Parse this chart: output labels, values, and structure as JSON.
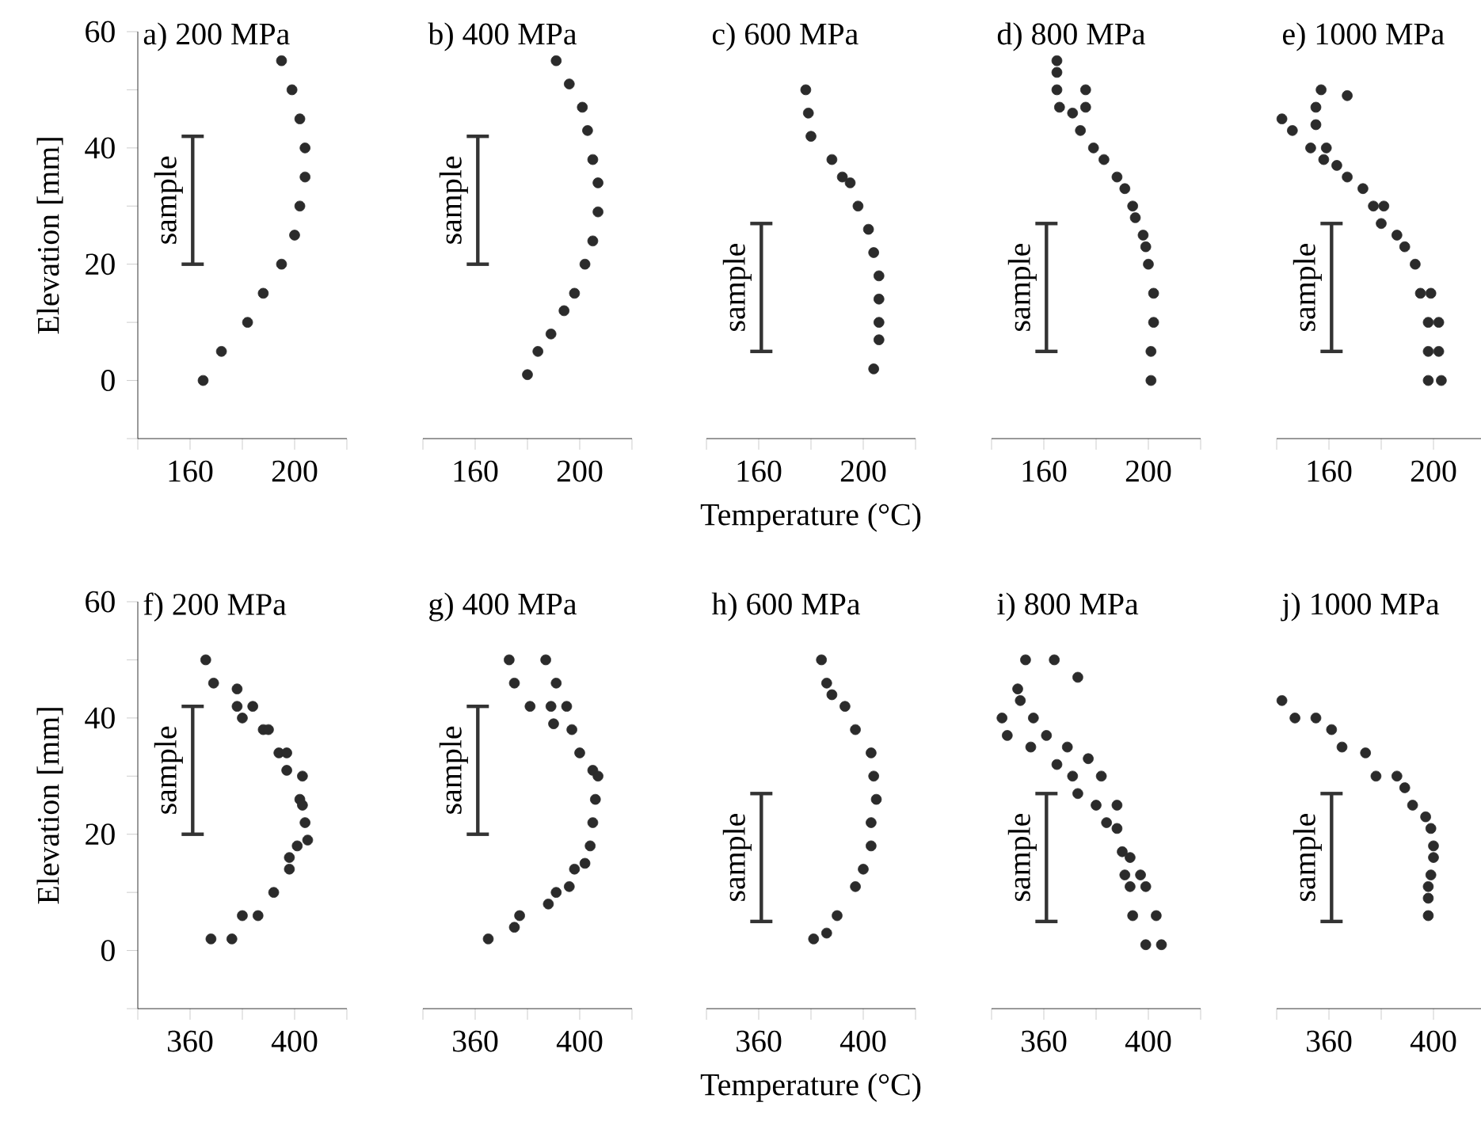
{
  "chart_data": [
    {
      "type": "scatter",
      "title": "a) 200 MPa",
      "ylabel": "Elevation [mm]",
      "xlim": [
        140,
        220
      ],
      "xticks": [
        {
          "value": 140,
          "label": null
        },
        160,
        {
          "value": 180,
          "label": null
        },
        200,
        {
          "value": 220,
          "label": null
        }
      ],
      "ylim": [
        -10,
        60
      ],
      "yticks": [
        {
          "value": -10,
          "label": null
        },
        0,
        {
          "value": 10,
          "label": null
        },
        20,
        {
          "value": 30,
          "label": null
        },
        40,
        {
          "value": 50,
          "label": null
        },
        60
      ],
      "annotations": [
        "sample"
      ],
      "series": [
        {
          "color": "#2b2b2b",
          "x": [
            165,
            172,
            182,
            188,
            195,
            200,
            202,
            204,
            204,
            202,
            199,
            195
          ],
          "values": [
            0,
            5,
            10,
            15,
            20,
            25,
            30,
            35,
            40,
            45,
            50,
            55
          ]
        },
        {
          "type": "line",
          "color": "#333333",
          "x": [
            161,
            161
          ],
          "values": [
            20,
            42
          ]
        }
      ]
    },
    {
      "type": "scatter",
      "title": "b) 400 MPa",
      "xlim": [
        140,
        220
      ],
      "xticks": [
        {
          "value": 140,
          "label": null
        },
        160,
        {
          "value": 180,
          "label": null
        },
        200,
        {
          "value": 220,
          "label": null
        }
      ],
      "ylim": [
        -10,
        60
      ],
      "tick_labels": "x",
      "annotations": [
        "sample"
      ],
      "series": [
        {
          "color": "#2b2b2b",
          "x": [
            180,
            184,
            189,
            194,
            198,
            202,
            205,
            207,
            207,
            205,
            203,
            201,
            196,
            191
          ],
          "values": [
            1,
            5,
            8,
            12,
            15,
            20,
            24,
            29,
            34,
            38,
            43,
            47,
            51,
            55
          ]
        },
        {
          "type": "line",
          "color": "#333333",
          "x": [
            161,
            161
          ],
          "values": [
            20,
            42
          ]
        }
      ]
    },
    {
      "type": "scatter",
      "title": "c) 600 MPa",
      "xlabel": "Temperature (°C)",
      "xlim": [
        140,
        220
      ],
      "xticks": [
        {
          "value": 140,
          "label": null
        },
        160,
        {
          "value": 180,
          "label": null
        },
        200,
        {
          "value": 220,
          "label": null
        }
      ],
      "ylim": [
        -10,
        60
      ],
      "tick_labels": "x",
      "annotations": [
        "sample"
      ],
      "series": [
        {
          "color": "#2b2b2b",
          "x": [
            178,
            179,
            180,
            188,
            192,
            195,
            198,
            202,
            204,
            206,
            206,
            206,
            206,
            204
          ],
          "values": [
            50,
            46,
            42,
            38,
            35,
            34,
            30,
            26,
            22,
            18,
            14,
            10,
            7,
            2
          ]
        },
        {
          "type": "line",
          "color": "#333333",
          "x": [
            161,
            161
          ],
          "values": [
            5,
            27
          ]
        }
      ]
    },
    {
      "type": "scatter",
      "title": "d) 800 MPa",
      "xlim": [
        140,
        220
      ],
      "xticks": [
        {
          "value": 140,
          "label": null
        },
        160,
        {
          "value": 180,
          "label": null
        },
        200,
        {
          "value": 220,
          "label": null
        }
      ],
      "ylim": [
        -10,
        60
      ],
      "tick_labels": "x",
      "annotations": [
        "sample"
      ],
      "series": [
        {
          "color": "#2b2b2b",
          "x": [
            165,
            165,
            165,
            176,
            166,
            171,
            176,
            174,
            179,
            183,
            188,
            191,
            194,
            195,
            198,
            199,
            200,
            202,
            202,
            201,
            201
          ],
          "values": [
            55,
            53,
            50,
            50,
            47,
            46,
            47,
            43,
            40,
            38,
            35,
            33,
            30,
            28,
            25,
            23,
            20,
            15,
            10,
            5,
            0
          ]
        },
        {
          "type": "line",
          "color": "#333333",
          "x": [
            161,
            161
          ],
          "values": [
            5,
            27
          ]
        }
      ]
    },
    {
      "type": "scatter",
      "title": "e) 1000 MPa",
      "xlim": [
        140,
        220
      ],
      "xticks": [
        {
          "value": 140,
          "label": null
        },
        160,
        {
          "value": 180,
          "label": null
        },
        200,
        {
          "value": 220,
          "label": null
        }
      ],
      "ylim": [
        -10,
        60
      ],
      "tick_labels": "x",
      "annotations": [
        "sample"
      ],
      "series": [
        {
          "color": "#2b2b2b",
          "x": [
            142,
            157,
            167,
            155,
            146,
            155,
            153,
            159,
            158,
            163,
            167,
            173,
            177,
            181,
            180,
            186,
            189,
            193,
            195,
            199,
            198,
            202,
            198,
            202,
            198,
            203
          ],
          "values": [
            45,
            50,
            49,
            47,
            43,
            44,
            40,
            40,
            38,
            37,
            35,
            33,
            30,
            30,
            27,
            25,
            23,
            20,
            15,
            15,
            10,
            10,
            5,
            5,
            0,
            0
          ]
        },
        {
          "type": "line",
          "color": "#333333",
          "x": [
            161,
            161
          ],
          "values": [
            5,
            27
          ]
        }
      ]
    },
    {
      "type": "scatter",
      "title": "f) 200 MPa",
      "ylabel": "Elevation [mm]",
      "xlim": [
        340,
        420
      ],
      "xticks": [
        {
          "value": 340,
          "label": null
        },
        360,
        {
          "value": 380,
          "label": null
        },
        400,
        {
          "value": 420,
          "label": null
        }
      ],
      "ylim": [
        -10,
        60
      ],
      "yticks": [
        {
          "value": -10,
          "label": null
        },
        0,
        {
          "value": 10,
          "label": null
        },
        20,
        {
          "value": 30,
          "label": null
        },
        40,
        {
          "value": 50,
          "label": null
        },
        60
      ],
      "annotations": [
        "sample"
      ],
      "series": [
        {
          "color": "#2b2b2b",
          "x": [
            366,
            369,
            378,
            378,
            384,
            380,
            388,
            390,
            394,
            397,
            397,
            403,
            402,
            403,
            404,
            405,
            401,
            398,
            398,
            392,
            386,
            380,
            376,
            368
          ],
          "values": [
            50,
            46,
            45,
            42,
            42,
            40,
            38,
            38,
            34,
            34,
            31,
            30,
            26,
            25,
            22,
            19,
            18,
            16,
            14,
            10,
            6,
            6,
            2,
            2
          ]
        },
        {
          "type": "line",
          "color": "#333333",
          "x": [
            361,
            361
          ],
          "values": [
            20,
            42
          ]
        }
      ]
    },
    {
      "type": "scatter",
      "title": "g) 400 MPa",
      "xlim": [
        340,
        420
      ],
      "xticks": [
        {
          "value": 340,
          "label": null
        },
        360,
        {
          "value": 380,
          "label": null
        },
        400,
        {
          "value": 420,
          "label": null
        }
      ],
      "ylim": [
        -10,
        60
      ],
      "tick_labels": "x",
      "annotations": [
        "sample"
      ],
      "series": [
        {
          "color": "#2b2b2b",
          "x": [
            373,
            387,
            375,
            391,
            381,
            389,
            395,
            390,
            397,
            400,
            405,
            407,
            406,
            405,
            404,
            402,
            398,
            396,
            391,
            388,
            377,
            375,
            365
          ],
          "values": [
            50,
            50,
            46,
            46,
            42,
            42,
            42,
            39,
            38,
            34,
            31,
            30,
            26,
            22,
            18,
            15,
            14,
            11,
            10,
            8,
            6,
            4,
            2
          ]
        },
        {
          "type": "line",
          "color": "#333333",
          "x": [
            361,
            361
          ],
          "values": [
            20,
            42
          ]
        }
      ]
    },
    {
      "type": "scatter",
      "title": "h) 600 MPa",
      "xlabel": "Temperature (°C)",
      "xlim": [
        340,
        420
      ],
      "xticks": [
        {
          "value": 340,
          "label": null
        },
        360,
        {
          "value": 380,
          "label": null
        },
        400,
        {
          "value": 420,
          "label": null
        }
      ],
      "ylim": [
        -10,
        60
      ],
      "tick_labels": "x",
      "annotations": [
        "sample"
      ],
      "series": [
        {
          "color": "#2b2b2b",
          "x": [
            384,
            386,
            388,
            393,
            397,
            403,
            404,
            405,
            403,
            403,
            400,
            397,
            390,
            386,
            381
          ],
          "values": [
            50,
            46,
            44,
            42,
            38,
            34,
            30,
            26,
            22,
            18,
            14,
            11,
            6,
            3,
            2
          ]
        },
        {
          "type": "line",
          "color": "#333333",
          "x": [
            361,
            361
          ],
          "values": [
            5,
            27
          ]
        }
      ]
    },
    {
      "type": "scatter",
      "title": "i) 800 MPa",
      "xlim": [
        340,
        420
      ],
      "xticks": [
        {
          "value": 340,
          "label": null
        },
        360,
        {
          "value": 380,
          "label": null
        },
        400,
        {
          "value": 420,
          "label": null
        }
      ],
      "ylim": [
        -10,
        60
      ],
      "tick_labels": "x",
      "annotations": [
        "sample"
      ],
      "series": [
        {
          "color": "#2b2b2b",
          "x": [
            353,
            364,
            373,
            350,
            351,
            344,
            356,
            346,
            355,
            361,
            369,
            377,
            365,
            371,
            382,
            373,
            380,
            388,
            384,
            388,
            390,
            393,
            391,
            397,
            393,
            399,
            394,
            403,
            399,
            405
          ],
          "values": [
            50,
            50,
            47,
            45,
            43,
            40,
            40,
            37,
            35,
            37,
            35,
            33,
            32,
            30,
            30,
            27,
            25,
            25,
            22,
            21,
            17,
            16,
            13,
            13,
            11,
            11,
            6,
            6,
            1,
            1
          ]
        },
        {
          "type": "line",
          "color": "#333333",
          "x": [
            361,
            361
          ],
          "values": [
            5,
            27
          ]
        }
      ]
    },
    {
      "type": "scatter",
      "title": "j) 1000 MPa",
      "xlim": [
        340,
        420
      ],
      "xticks": [
        {
          "value": 340,
          "label": null
        },
        360,
        {
          "value": 380,
          "label": null
        },
        400,
        {
          "value": 420,
          "label": null
        }
      ],
      "ylim": [
        -10,
        60
      ],
      "tick_labels": "x",
      "annotations": [
        "sample"
      ],
      "series": [
        {
          "color": "#2b2b2b",
          "x": [
            342,
            347,
            355,
            361,
            365,
            374,
            378,
            386,
            389,
            392,
            397,
            399,
            400,
            400,
            399,
            398,
            398,
            398
          ],
          "values": [
            43,
            40,
            40,
            38,
            35,
            34,
            30,
            30,
            28,
            25,
            23,
            21,
            18,
            16,
            13,
            11,
            9,
            6
          ]
        },
        {
          "type": "line",
          "color": "#333333",
          "x": [
            361,
            361
          ],
          "values": [
            5,
            27
          ]
        }
      ]
    }
  ]
}
